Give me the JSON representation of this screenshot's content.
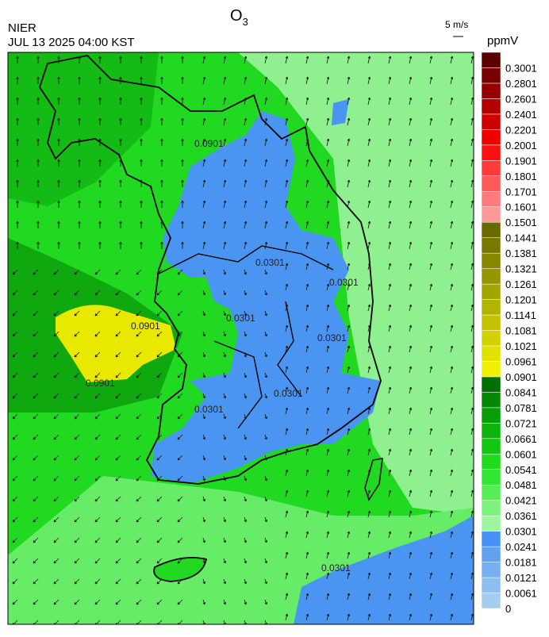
{
  "header": {
    "agency": "NIER",
    "datetime": "JUL 13 2025 04:00 KST",
    "title": {
      "base": "O",
      "sub": "3"
    },
    "vector_scale": "5 m/s"
  },
  "colorbar": {
    "unit": "ppmV",
    "labels": [
      0,
      0.0061,
      0.0121,
      0.0181,
      0.0241,
      0.0301,
      0.0361,
      0.0421,
      0.0481,
      0.0541,
      0.0601,
      0.0661,
      0.0721,
      0.0781,
      0.0841,
      0.0901,
      0.0961,
      0.1021,
      0.1081,
      0.1141,
      0.1201,
      0.1261,
      0.1321,
      0.1381,
      0.1441,
      0.1501,
      0.1601,
      0.1701,
      0.1801,
      0.1901,
      0.2001,
      0.2201,
      0.2401,
      0.2601,
      0.2801,
      0.3001
    ],
    "colors": [
      "#a6cdee",
      "#8fbff0",
      "#77b0f0",
      "#5fa2f2",
      "#4692f4",
      "#9ef59e",
      "#7cf27c",
      "#55ee55",
      "#33e633",
      "#1cdc1c",
      "#10c810",
      "#0cb40c",
      "#089e08",
      "#058805",
      "#027002",
      "#f0f000",
      "#e1e100",
      "#d2d200",
      "#c3c300",
      "#b4b400",
      "#a5a500",
      "#969600",
      "#878700",
      "#787800",
      "#696900",
      "#ff9999",
      "#ff7a7a",
      "#ff5a5a",
      "#ff3a3a",
      "#ff1010",
      "#ee0000",
      "#d00000",
      "#b40000",
      "#960000",
      "#780000",
      "#5a0000"
    ]
  },
  "contour_labels": [
    "0.0901",
    "0.0901",
    "0.0901",
    "0.0301",
    "0.0301",
    "0.0301",
    "0.0301",
    "0.0301",
    "0.0301",
    "0.0301"
  ]
}
